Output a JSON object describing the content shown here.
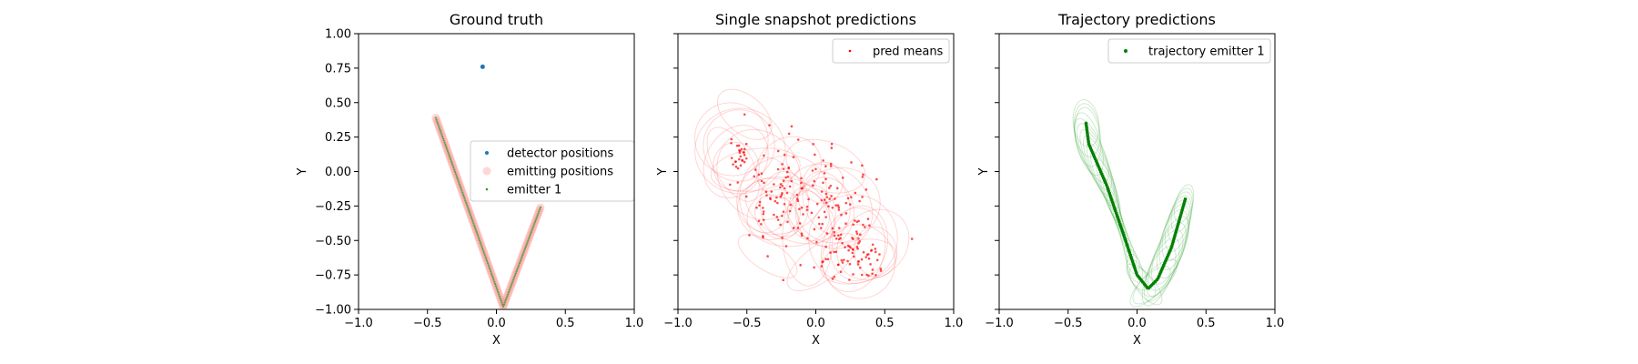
{
  "chart_data": [
    {
      "type": "scatter",
      "title": "Ground truth",
      "xlabel": "X",
      "ylabel": "Y",
      "xlim": [
        -1.0,
        1.0
      ],
      "ylim": [
        -1.0,
        1.0
      ],
      "xticks": [
        "−1.0",
        "−0.5",
        "0.0",
        "0.5",
        "1.0"
      ],
      "yticks": [
        "1.00",
        "0.75",
        "0.50",
        "0.25",
        "0.00",
        "−0.25",
        "−0.50",
        "−0.75",
        "−1.00"
      ],
      "legend_position": "center-right",
      "series": [
        {
          "name": "detector positions",
          "color": "#1f77b4",
          "points": [
            [
              -0.1,
              0.76
            ]
          ]
        },
        {
          "name": "emitting positions",
          "color": "#ff9999",
          "path": [
            [
              -0.44,
              0.39
            ],
            [
              0.05,
              -0.98
            ],
            [
              0.32,
              -0.26
            ]
          ]
        },
        {
          "name": "emitter 1",
          "color": "#2ca02c",
          "path": [
            [
              -0.44,
              0.39
            ],
            [
              0.05,
              -0.98
            ],
            [
              0.32,
              -0.26
            ]
          ]
        }
      ]
    },
    {
      "type": "scatter",
      "title": "Single snapshot predictions",
      "xlabel": "X",
      "ylabel": "Y",
      "xlim": [
        -1.0,
        1.0
      ],
      "ylim": [
        -1.0,
        1.0
      ],
      "xticks": [
        "−1.0",
        "−0.5",
        "0.0",
        "0.5",
        "1.0"
      ],
      "legend_position": "top-right",
      "series": [
        {
          "name": "pred means",
          "color": "#ff0000",
          "clusters": [
            {
              "center": [
                -0.55,
                0.13
              ],
              "spread": [
                0.05,
                0.05
              ],
              "n": 25
            },
            {
              "center": [
                -0.25,
                -0.2
              ],
              "spread": [
                0.15,
                0.2
              ],
              "n": 90
            },
            {
              "center": [
                0.1,
                -0.3
              ],
              "spread": [
                0.15,
                0.2
              ],
              "n": 90
            },
            {
              "center": [
                0.3,
                -0.6
              ],
              "spread": [
                0.12,
                0.12
              ],
              "n": 60
            }
          ]
        }
      ]
    },
    {
      "type": "line",
      "title": "Trajectory predictions",
      "xlabel": "X",
      "ylabel": "Y",
      "xlim": [
        -1.0,
        1.0
      ],
      "ylim": [
        -1.0,
        1.0
      ],
      "xticks": [
        "−1.0",
        "−0.5",
        "0.0",
        "0.5",
        "1.0"
      ],
      "legend_position": "top-right",
      "series": [
        {
          "name": "trajectory emitter 1",
          "color": "#008000",
          "path": [
            [
              -0.37,
              0.35
            ],
            [
              -0.35,
              0.2
            ],
            [
              -0.22,
              -0.1
            ],
            [
              -0.1,
              -0.45
            ],
            [
              0.0,
              -0.75
            ],
            [
              0.08,
              -0.85
            ],
            [
              0.15,
              -0.78
            ],
            [
              0.25,
              -0.55
            ],
            [
              0.35,
              -0.2
            ]
          ]
        }
      ]
    }
  ]
}
